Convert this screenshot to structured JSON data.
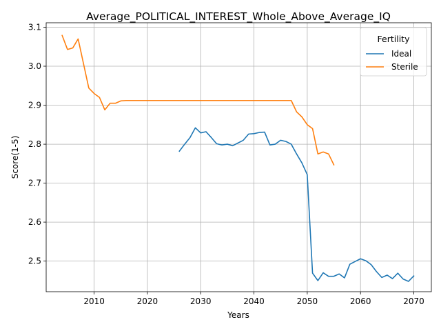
{
  "chart_data": {
    "type": "line",
    "title": "Average_POLITICAL_INTEREST_Whole_Above_Average_IQ",
    "xlabel": "Years",
    "ylabel": "Score(1-5)",
    "xlim": [
      2001,
      2073.3
    ],
    "ylim": [
      2.4215,
      3.1115
    ],
    "xticks": [
      2010,
      2020,
      2030,
      2040,
      2050,
      2060,
      2070
    ],
    "yticks": [
      2.5,
      2.6,
      2.7,
      2.8,
      2.9,
      3.0,
      3.1
    ],
    "ytick_labels": [
      "2.5",
      "2.6",
      "2.7",
      "2.8",
      "2.9",
      "3.0",
      "3.1"
    ],
    "grid": true,
    "legend": {
      "title": "Fertility",
      "position": "top-right"
    },
    "series": [
      {
        "name": "Ideal",
        "color": "#1f77b4",
        "x": [
          2026,
          2027,
          2028,
          2029,
          2030,
          2031,
          2032,
          2033,
          2034,
          2035,
          2036,
          2037,
          2038,
          2039,
          2040,
          2041,
          2042,
          2043,
          2044,
          2045,
          2046,
          2047,
          2048,
          2049,
          2050,
          2051,
          2052,
          2053,
          2054,
          2055,
          2056,
          2057,
          2058,
          2059,
          2060,
          2061,
          2062,
          2063,
          2064,
          2065,
          2066,
          2067,
          2068,
          2069,
          2070
        ],
        "values": [
          2.782,
          2.8,
          2.817,
          2.842,
          2.829,
          2.832,
          2.817,
          2.801,
          2.798,
          2.8,
          2.796,
          2.803,
          2.81,
          2.826,
          2.827,
          2.83,
          2.831,
          2.798,
          2.8,
          2.81,
          2.807,
          2.8,
          2.775,
          2.752,
          2.722,
          2.469,
          2.45,
          2.47,
          2.461,
          2.461,
          2.467,
          2.457,
          2.492,
          2.499,
          2.506,
          2.501,
          2.491,
          2.473,
          2.458,
          2.464,
          2.455,
          2.469,
          2.454,
          2.448,
          2.462
        ]
      },
      {
        "name": "Sterile",
        "color": "#ff7f0e",
        "x": [
          2004,
          2005,
          2006,
          2007,
          2008,
          2009,
          2010,
          2011,
          2012,
          2013,
          2014,
          2015,
          2016,
          2017,
          2018,
          2019,
          2020,
          2021,
          2022,
          2023,
          2024,
          2025,
          2026,
          2027,
          2028,
          2029,
          2030,
          2031,
          2032,
          2033,
          2034,
          2035,
          2036,
          2037,
          2038,
          2039,
          2040,
          2041,
          2042,
          2043,
          2044,
          2045,
          2046,
          2047,
          2048,
          2049,
          2050,
          2051,
          2052,
          2053,
          2054,
          2055
        ],
        "values": [
          3.079,
          3.043,
          3.047,
          3.07,
          3.007,
          2.944,
          2.93,
          2.92,
          2.888,
          2.905,
          2.905,
          2.911,
          2.912,
          2.912,
          2.912,
          2.912,
          2.912,
          2.912,
          2.912,
          2.912,
          2.912,
          2.912,
          2.912,
          2.912,
          2.912,
          2.912,
          2.912,
          2.912,
          2.912,
          2.912,
          2.912,
          2.912,
          2.912,
          2.912,
          2.912,
          2.912,
          2.912,
          2.912,
          2.912,
          2.912,
          2.912,
          2.912,
          2.912,
          2.912,
          2.883,
          2.87,
          2.85,
          2.84,
          2.775,
          2.78,
          2.775,
          2.747
        ]
      }
    ]
  }
}
